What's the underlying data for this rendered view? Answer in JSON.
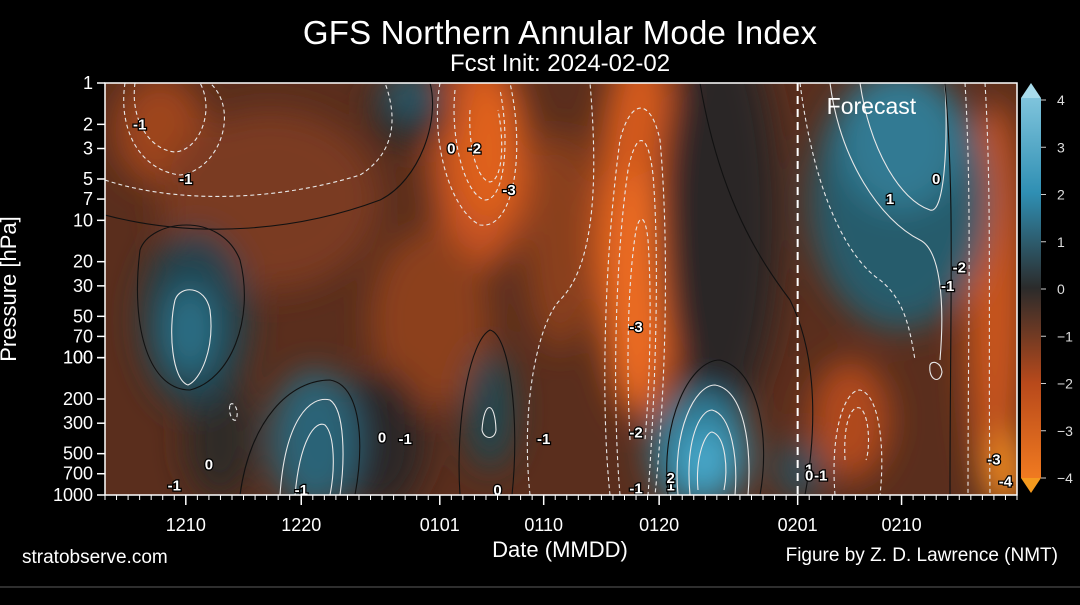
{
  "chart_data": {
    "type": "heatmap",
    "title": "GFS Northern Annular Mode Index",
    "subtitle": "Fcst Init: 2024-02-02",
    "xlabel": "Date (MMDD)",
    "ylabel": "Pressure [hPa]",
    "x_ticks": [
      "1210",
      "1220",
      "0101",
      "0110",
      "0120",
      "0201",
      "0210"
    ],
    "y_ticks": [
      "1",
      "2",
      "3",
      "5",
      "7",
      "10",
      "20",
      "30",
      "50",
      "70",
      "100",
      "100",
      "200",
      "300",
      "500",
      "700",
      "1000"
    ],
    "y_scale": "log (inverted)",
    "colorbar": {
      "ticks": [
        "4",
        "3",
        "2",
        "1",
        "0",
        "−1",
        "−2",
        "−3",
        "−4"
      ],
      "range": [
        -4,
        4
      ],
      "colors": {
        "positive": "#3a9ac0",
        "zero": "#2a2a2a",
        "negative": "#e05a1e"
      },
      "extend": "both"
    },
    "forecast_label": "Forecast",
    "forecast_start": "0201",
    "contour_labels": [
      {
        "text": "-1",
        "date": "1206",
        "p": 2
      },
      {
        "text": "-1",
        "date": "1210",
        "p": 5
      },
      {
        "text": "0",
        "date": "0102",
        "p": 3
      },
      {
        "text": "-2",
        "date": "0104",
        "p": 3
      },
      {
        "text": "-3",
        "date": "0107",
        "p": 6
      },
      {
        "text": "-3",
        "date": "0118",
        "p": 60
      },
      {
        "text": "-2",
        "date": "0118",
        "p": 350
      },
      {
        "text": "0",
        "date": "1227",
        "p": 380
      },
      {
        "text": "-1",
        "date": "1229",
        "p": 390
      },
      {
        "text": "-1",
        "date": "0110",
        "p": 390
      },
      {
        "text": "0",
        "date": "1212",
        "p": 600
      },
      {
        "text": "-1",
        "date": "1209",
        "p": 850
      },
      {
        "text": "-1",
        "date": "1220",
        "p": 920
      },
      {
        "text": "0",
        "date": "0106",
        "p": 920
      },
      {
        "text": "-1",
        "date": "0118",
        "p": 900
      },
      {
        "text": "1",
        "date": "0121",
        "p": 850
      },
      {
        "text": "2",
        "date": "0121",
        "p": 750
      },
      {
        "text": "1",
        "date": "0202",
        "p": 650
      },
      {
        "text": "0",
        "date": "0202",
        "p": 720
      },
      {
        "text": "-1",
        "date": "0203",
        "p": 720
      },
      {
        "text": "1",
        "date": "0209",
        "p": 7
      },
      {
        "text": "0",
        "date": "0213",
        "p": 5
      },
      {
        "text": "-2",
        "date": "0215",
        "p": 22
      },
      {
        "text": "-1",
        "date": "0214",
        "p": 30
      },
      {
        "text": "-3",
        "date": "0218",
        "p": 550
      },
      {
        "text": "-4",
        "date": "0219",
        "p": 800
      }
    ]
  },
  "footer": {
    "left": "stratobserve.com",
    "right": "Figure by Z. D. Lawrence (NMT)"
  }
}
